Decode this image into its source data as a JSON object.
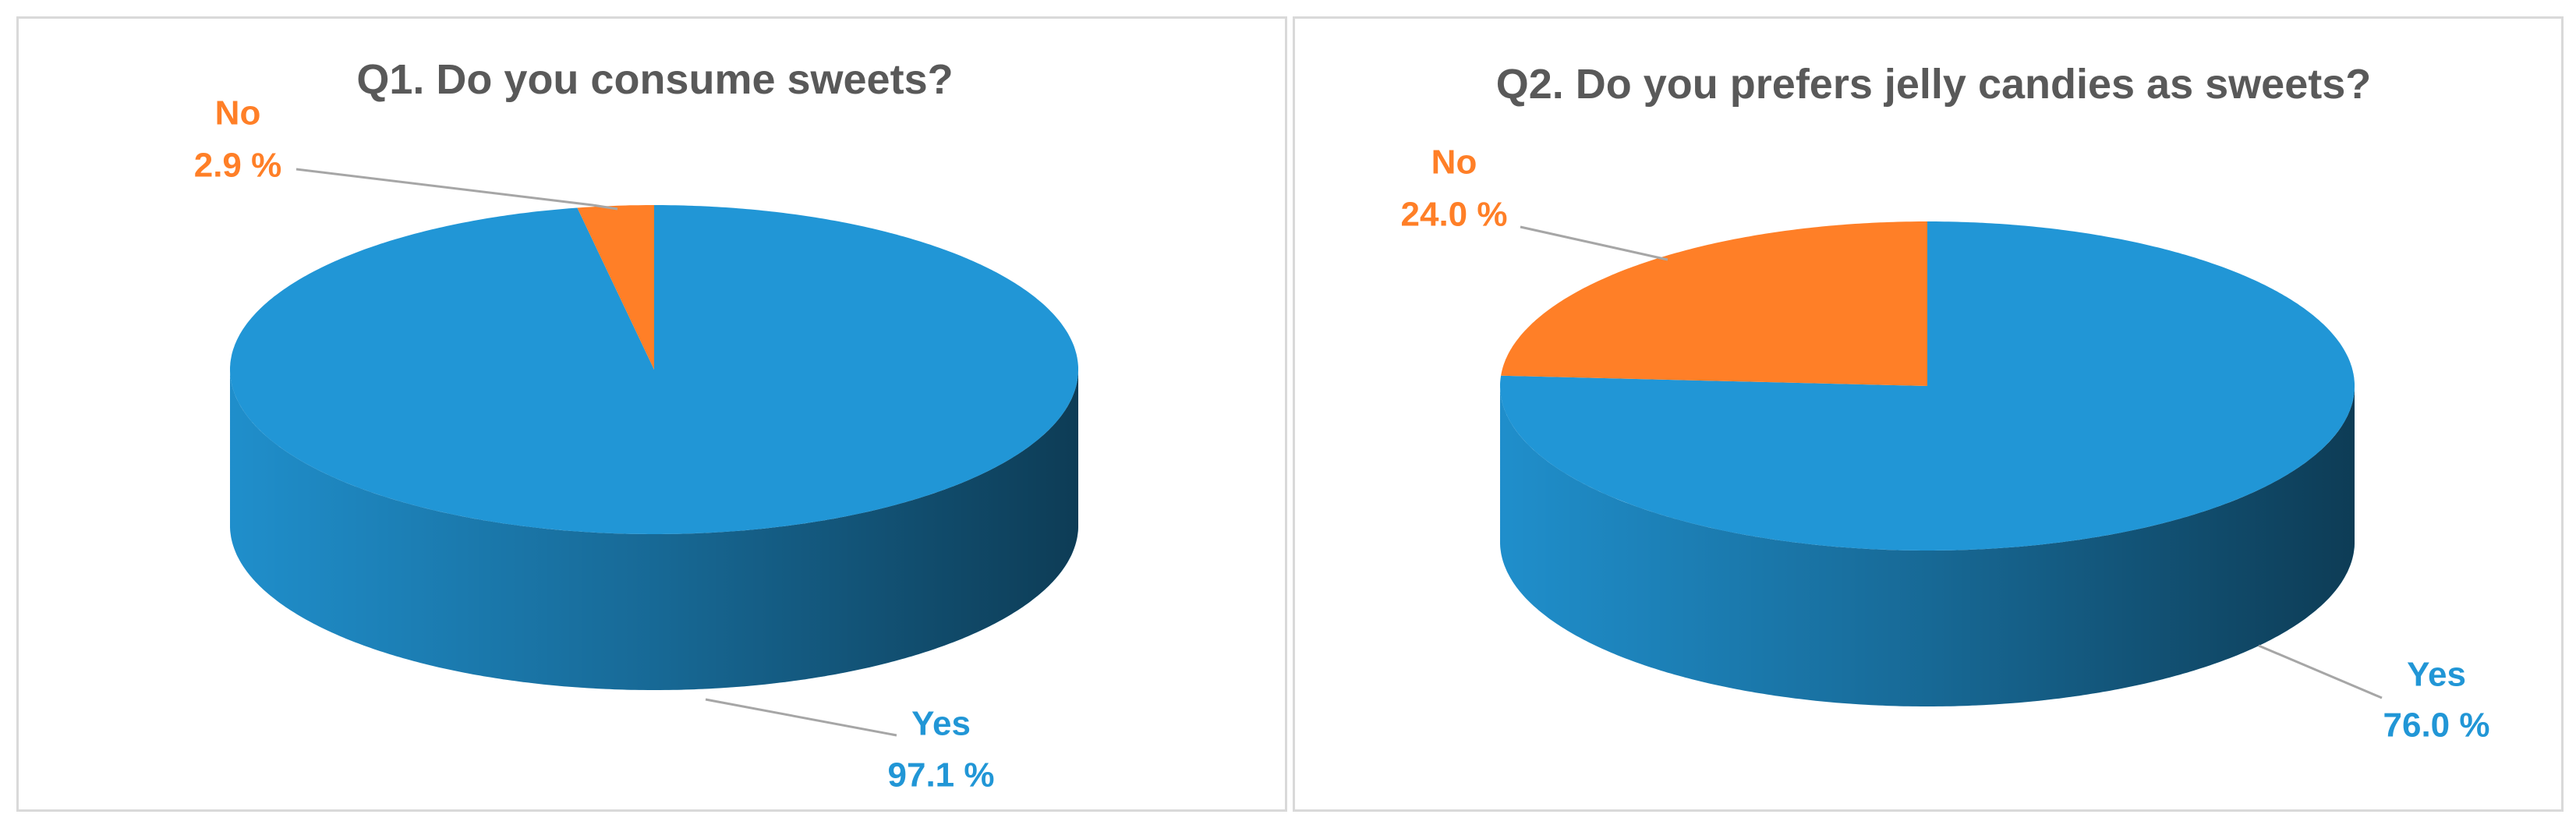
{
  "chart_data": [
    {
      "type": "pie",
      "title": "Q1. Do you consume sweets?",
      "categories": [
        "Yes",
        "No"
      ],
      "values": [
        97.1,
        2.9
      ],
      "value_labels": [
        "97.1 %",
        "2.9 %"
      ],
      "colors": [
        "#2196D6",
        "#FF7F27"
      ]
    },
    {
      "type": "pie",
      "title": "Q2. Do you prefers jelly candies as sweets?",
      "categories": [
        "Yes",
        "No"
      ],
      "values": [
        76.0,
        24.0
      ],
      "value_labels": [
        "76.0 %",
        "24.0 %"
      ],
      "colors": [
        "#2196D6",
        "#FF7F27"
      ]
    }
  ]
}
